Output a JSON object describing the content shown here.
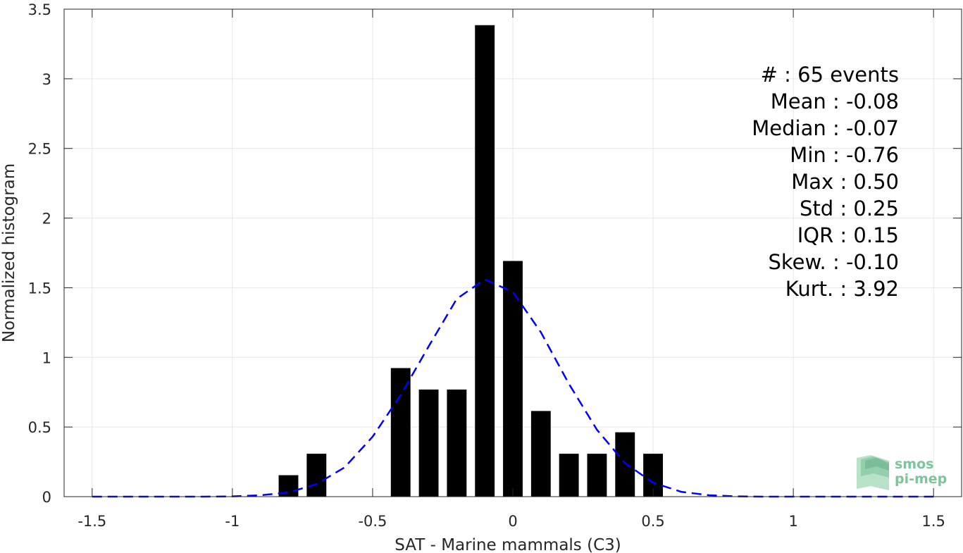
{
  "chart_data": {
    "type": "bar",
    "xlabel": "SAT - Marine mammals (C3)",
    "ylabel": "Normalized histogram",
    "xlim": [
      -1.6,
      1.6
    ],
    "ylim": [
      0,
      3.5
    ],
    "xticks": [
      -1.5,
      -1,
      -0.5,
      0,
      0.5,
      1,
      1.5
    ],
    "xtick_labels": [
      "-1.5",
      "-1",
      "-0.5",
      "0",
      "0.5",
      "1",
      "1.5"
    ],
    "yticks": [
      0,
      0.5,
      1,
      1.5,
      2,
      2.5,
      3,
      3.5
    ],
    "ytick_labels": [
      "0",
      "0.5",
      "1",
      "1.5",
      "2",
      "2.5",
      "3",
      "3.5"
    ],
    "grid": true,
    "bar_color": "#000000",
    "bar_width": 0.07,
    "bars": [
      {
        "x": -0.8,
        "value": 0.154
      },
      {
        "x": -0.7,
        "value": 0.308
      },
      {
        "x": -0.4,
        "value": 0.923
      },
      {
        "x": -0.3,
        "value": 0.769
      },
      {
        "x": -0.2,
        "value": 0.769
      },
      {
        "x": -0.1,
        "value": 3.385
      },
      {
        "x": 0.0,
        "value": 1.692
      },
      {
        "x": 0.1,
        "value": 0.615
      },
      {
        "x": 0.2,
        "value": 0.308
      },
      {
        "x": 0.3,
        "value": 0.308
      },
      {
        "x": 0.4,
        "value": 0.462
      },
      {
        "x": 0.5,
        "value": 0.308
      }
    ],
    "fit_curve": {
      "style": "dashed",
      "color": "#0000ff",
      "x": [
        -1.5,
        -1.4,
        -1.3,
        -1.2,
        -1.1,
        -1.0,
        -0.9,
        -0.8,
        -0.7,
        -0.6,
        -0.5,
        -0.4,
        -0.3,
        -0.2,
        -0.1,
        0.0,
        0.1,
        0.2,
        0.3,
        0.4,
        0.5,
        0.6,
        0.7,
        0.8,
        0.9,
        1.0,
        1.1,
        1.2,
        1.3,
        1.4,
        1.5
      ],
      "y": [
        0.0,
        0.0,
        0.0,
        0.0,
        0.0,
        0.002,
        0.01,
        0.03,
        0.09,
        0.21,
        0.43,
        0.73,
        1.08,
        1.42,
        1.56,
        1.47,
        1.18,
        0.81,
        0.48,
        0.24,
        0.1,
        0.035,
        0.01,
        0.002,
        0.0,
        0.0,
        0.0,
        0.0,
        0.0,
        0.0,
        0.0
      ]
    },
    "annotations": [
      "#  : 65 events",
      "Mean : -0.08",
      "Median : -0.07",
      "Min : -0.76",
      "Max : 0.50",
      "Std : 0.25",
      "IQR : 0.15",
      "Skew. : -0.10",
      "Kurt. : 3.92"
    ]
  },
  "logo": {
    "line1": "smos",
    "line2": "pi-mep",
    "color": "#7dc49a"
  }
}
